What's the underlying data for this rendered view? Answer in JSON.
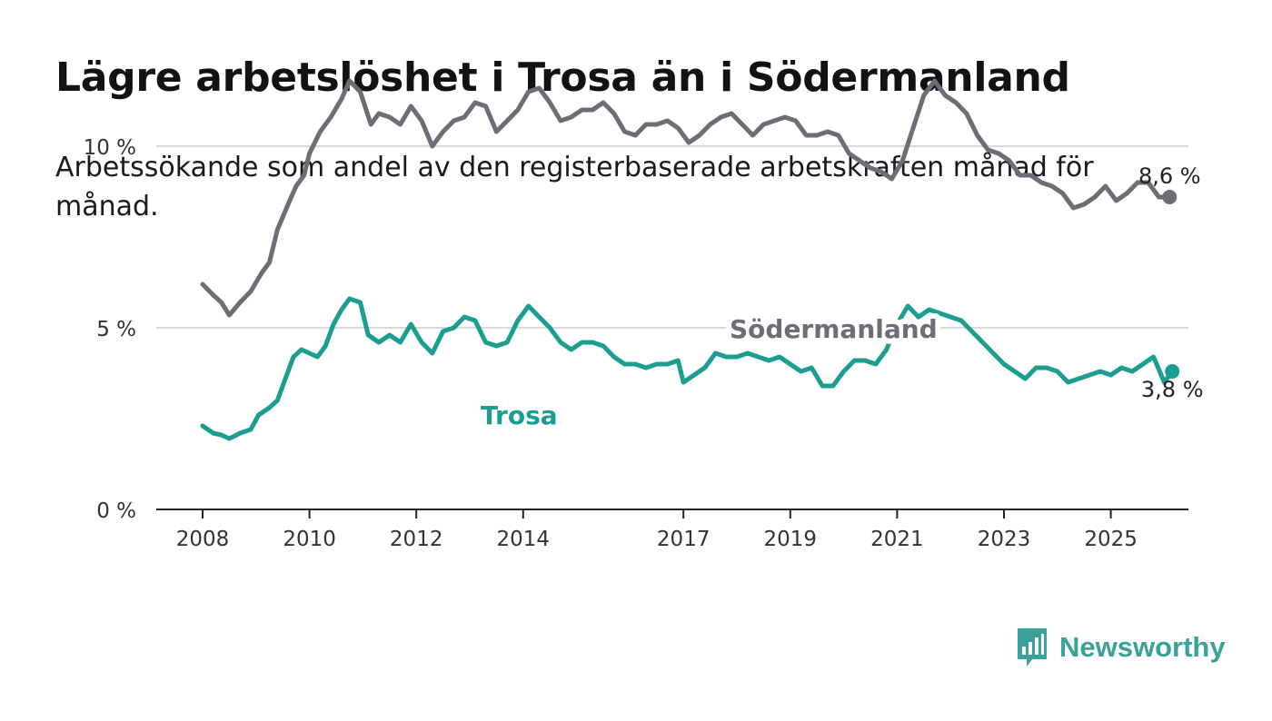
{
  "title": "Lägre arbetslöshet i Trosa än i Södermanland",
  "subtitle": "Arbetssökande som andel av den registerbaserade arbetskraften månad för månad.",
  "brand": {
    "name": "Newsworthy",
    "icon": "chart-bubble-icon",
    "color": "#3aa29b"
  },
  "chart_data": {
    "type": "line",
    "x_ticks": [
      "2008",
      "2010",
      "2012",
      "2014",
      "2017",
      "2019",
      "2021",
      "2023",
      "2025"
    ],
    "y_ticks": [
      "0 %",
      "5 %",
      "10 %"
    ],
    "ylim": [
      0,
      12
    ],
    "grid": true,
    "series": [
      {
        "name": "Södermanland",
        "color": "#6e6d75",
        "end_label": "8,6 %",
        "points": [
          [
            2008.0,
            6.2
          ],
          [
            2008.2,
            5.9
          ],
          [
            2008.35,
            5.7
          ],
          [
            2008.5,
            5.35
          ],
          [
            2008.7,
            5.7
          ],
          [
            2008.9,
            6.0
          ],
          [
            2009.1,
            6.5
          ],
          [
            2009.25,
            6.8
          ],
          [
            2009.4,
            7.7
          ],
          [
            2009.6,
            8.4
          ],
          [
            2009.75,
            8.9
          ],
          [
            2009.9,
            9.2
          ],
          [
            2010.0,
            9.8
          ],
          [
            2010.2,
            10.4
          ],
          [
            2010.4,
            10.8
          ],
          [
            2010.6,
            11.3
          ],
          [
            2010.75,
            11.8
          ],
          [
            2010.95,
            11.5
          ],
          [
            2011.15,
            10.6
          ],
          [
            2011.3,
            10.9
          ],
          [
            2011.5,
            10.8
          ],
          [
            2011.7,
            10.6
          ],
          [
            2011.9,
            11.1
          ],
          [
            2012.1,
            10.7
          ],
          [
            2012.3,
            10.0
          ],
          [
            2012.5,
            10.4
          ],
          [
            2012.7,
            10.7
          ],
          [
            2012.9,
            10.8
          ],
          [
            2013.1,
            11.2
          ],
          [
            2013.3,
            11.1
          ],
          [
            2013.5,
            10.4
          ],
          [
            2013.7,
            10.7
          ],
          [
            2013.9,
            11.0
          ],
          [
            2014.1,
            11.5
          ],
          [
            2014.3,
            11.6
          ],
          [
            2014.5,
            11.2
          ],
          [
            2014.7,
            10.7
          ],
          [
            2014.9,
            10.8
          ],
          [
            2015.1,
            11.0
          ],
          [
            2015.3,
            11.0
          ],
          [
            2015.5,
            11.2
          ],
          [
            2015.7,
            10.9
          ],
          [
            2015.9,
            10.4
          ],
          [
            2016.1,
            10.3
          ],
          [
            2016.3,
            10.6
          ],
          [
            2016.5,
            10.6
          ],
          [
            2016.7,
            10.7
          ],
          [
            2016.9,
            10.5
          ],
          [
            2017.1,
            10.1
          ],
          [
            2017.3,
            10.3
          ],
          [
            2017.5,
            10.6
          ],
          [
            2017.7,
            10.8
          ],
          [
            2017.9,
            10.9
          ],
          [
            2018.1,
            10.6
          ],
          [
            2018.3,
            10.3
          ],
          [
            2018.5,
            10.6
          ],
          [
            2018.7,
            10.7
          ],
          [
            2018.9,
            10.8
          ],
          [
            2019.1,
            10.7
          ],
          [
            2019.3,
            10.3
          ],
          [
            2019.5,
            10.3
          ],
          [
            2019.7,
            10.4
          ],
          [
            2019.9,
            10.3
          ],
          [
            2020.1,
            9.8
          ],
          [
            2020.3,
            9.6
          ],
          [
            2020.5,
            9.4
          ],
          [
            2020.7,
            9.3
          ],
          [
            2020.9,
            9.1
          ],
          [
            2021.1,
            9.6
          ],
          [
            2021.3,
            10.5
          ],
          [
            2021.5,
            11.4
          ],
          [
            2021.7,
            11.8
          ],
          [
            2021.9,
            11.4
          ],
          [
            2022.1,
            11.2
          ],
          [
            2022.3,
            10.9
          ],
          [
            2022.5,
            10.3
          ],
          [
            2022.7,
            9.9
          ],
          [
            2022.9,
            9.8
          ],
          [
            2023.1,
            9.6
          ],
          [
            2023.3,
            9.2
          ],
          [
            2023.5,
            9.2
          ],
          [
            2023.7,
            9.0
          ],
          [
            2023.9,
            8.9
          ],
          [
            2024.1,
            8.7
          ],
          [
            2024.3,
            8.3
          ],
          [
            2024.5,
            8.4
          ],
          [
            2024.7,
            8.6
          ],
          [
            2024.9,
            8.9
          ],
          [
            2025.1,
            8.5
          ],
          [
            2025.3,
            8.7
          ],
          [
            2025.5,
            9.0
          ],
          [
            2025.7,
            9.0
          ],
          [
            2025.9,
            8.6
          ],
          [
            2026.1,
            8.6
          ]
        ]
      },
      {
        "name": "Trosa",
        "color": "#1a9e90",
        "end_label": "3,8 %",
        "points": [
          [
            2008.0,
            2.3
          ],
          [
            2008.2,
            2.1
          ],
          [
            2008.35,
            2.05
          ],
          [
            2008.5,
            1.95
          ],
          [
            2008.7,
            2.1
          ],
          [
            2008.9,
            2.2
          ],
          [
            2009.05,
            2.6
          ],
          [
            2009.25,
            2.8
          ],
          [
            2009.4,
            3.0
          ],
          [
            2009.55,
            3.6
          ],
          [
            2009.7,
            4.2
          ],
          [
            2009.85,
            4.4
          ],
          [
            2010.0,
            4.3
          ],
          [
            2010.15,
            4.2
          ],
          [
            2010.3,
            4.5
          ],
          [
            2010.45,
            5.1
          ],
          [
            2010.6,
            5.5
          ],
          [
            2010.75,
            5.8
          ],
          [
            2010.95,
            5.7
          ],
          [
            2011.1,
            4.8
          ],
          [
            2011.3,
            4.6
          ],
          [
            2011.5,
            4.8
          ],
          [
            2011.7,
            4.6
          ],
          [
            2011.9,
            5.1
          ],
          [
            2012.1,
            4.6
          ],
          [
            2012.3,
            4.3
          ],
          [
            2012.5,
            4.9
          ],
          [
            2012.7,
            5.0
          ],
          [
            2012.9,
            5.3
          ],
          [
            2013.1,
            5.2
          ],
          [
            2013.3,
            4.6
          ],
          [
            2013.5,
            4.5
          ],
          [
            2013.7,
            4.6
          ],
          [
            2013.9,
            5.2
          ],
          [
            2014.1,
            5.6
          ],
          [
            2014.3,
            5.3
          ],
          [
            2014.5,
            5.0
          ],
          [
            2014.7,
            4.6
          ],
          [
            2014.9,
            4.4
          ],
          [
            2015.1,
            4.6
          ],
          [
            2015.3,
            4.6
          ],
          [
            2015.5,
            4.5
          ],
          [
            2015.7,
            4.2
          ],
          [
            2015.9,
            4.0
          ],
          [
            2016.1,
            4.0
          ],
          [
            2016.3,
            3.9
          ],
          [
            2016.5,
            4.0
          ],
          [
            2016.7,
            4.0
          ],
          [
            2016.9,
            4.1
          ],
          [
            2017.0,
            3.5
          ],
          [
            2017.2,
            3.7
          ],
          [
            2017.4,
            3.9
          ],
          [
            2017.6,
            4.3
          ],
          [
            2017.8,
            4.2
          ],
          [
            2018.0,
            4.2
          ],
          [
            2018.2,
            4.3
          ],
          [
            2018.4,
            4.2
          ],
          [
            2018.6,
            4.1
          ],
          [
            2018.8,
            4.2
          ],
          [
            2019.0,
            4.0
          ],
          [
            2019.2,
            3.8
          ],
          [
            2019.4,
            3.9
          ],
          [
            2019.6,
            3.4
          ],
          [
            2019.8,
            3.4
          ],
          [
            2020.0,
            3.8
          ],
          [
            2020.2,
            4.1
          ],
          [
            2020.4,
            4.1
          ],
          [
            2020.6,
            4.0
          ],
          [
            2020.8,
            4.4
          ],
          [
            2021.0,
            5.1
          ],
          [
            2021.2,
            5.6
          ],
          [
            2021.4,
            5.3
          ],
          [
            2021.6,
            5.5
          ],
          [
            2021.8,
            5.4
          ],
          [
            2022.0,
            5.3
          ],
          [
            2022.2,
            5.2
          ],
          [
            2022.4,
            4.9
          ],
          [
            2022.6,
            4.6
          ],
          [
            2022.8,
            4.3
          ],
          [
            2023.0,
            4.0
          ],
          [
            2023.2,
            3.8
          ],
          [
            2023.4,
            3.6
          ],
          [
            2023.6,
            3.9
          ],
          [
            2023.8,
            3.9
          ],
          [
            2024.0,
            3.8
          ],
          [
            2024.2,
            3.5
          ],
          [
            2024.4,
            3.6
          ],
          [
            2024.6,
            3.7
          ],
          [
            2024.8,
            3.8
          ],
          [
            2025.0,
            3.7
          ],
          [
            2025.2,
            3.9
          ],
          [
            2025.4,
            3.8
          ],
          [
            2025.6,
            4.0
          ],
          [
            2025.8,
            4.2
          ],
          [
            2026.0,
            3.5
          ],
          [
            2026.15,
            3.8
          ]
        ]
      }
    ]
  }
}
